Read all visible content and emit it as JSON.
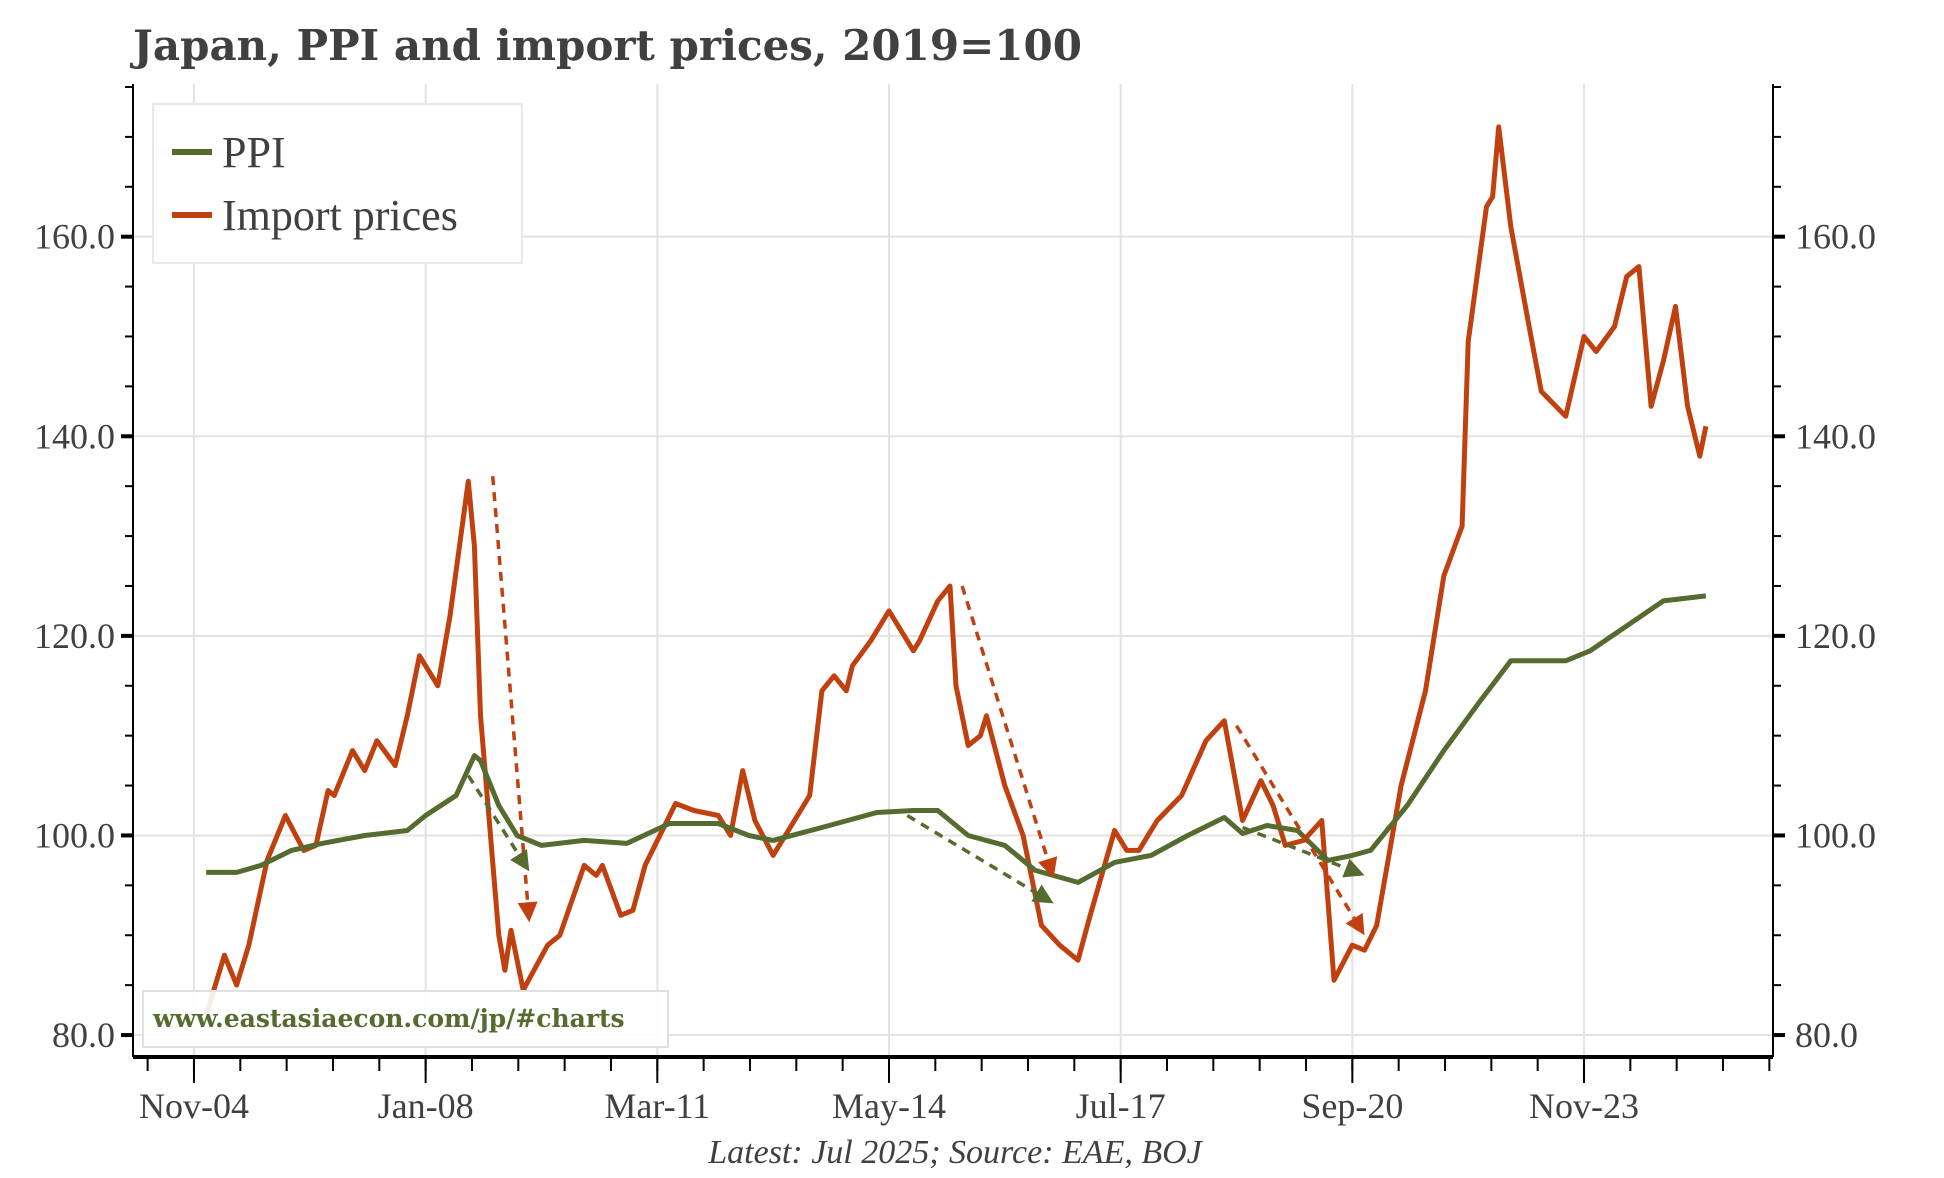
{
  "chart_data": {
    "type": "line",
    "title": "Japan, PPI and import prices, 2019=100",
    "footer": "Latest: Jul 2025; Source: EAE, BOJ",
    "watermark": "www.eastasiaecon.com/jp/#charts",
    "ylim": [
      77.8,
      175.3
    ],
    "xlim": [
      "2004-01",
      "2026-06"
    ],
    "y_ticks": [
      "80.0",
      "100.0",
      "120.0",
      "140.0",
      "160.0"
    ],
    "y_tick_values": [
      80,
      100,
      120,
      140,
      160
    ],
    "x_ticks": [
      "Nov-04",
      "Jan-08",
      "Mar-11",
      "May-14",
      "Jul-17",
      "Sep-20",
      "Nov-23"
    ],
    "x_tick_dates": [
      "2004-11",
      "2008-01",
      "2011-03",
      "2014-05",
      "2017-07",
      "2020-09",
      "2023-11"
    ],
    "grid": true,
    "dual_y_axis": true,
    "legend_placement": "top-left",
    "series": [
      {
        "name": "PPI",
        "color": "#556b2f",
        "points": [
          [
            "2005-01",
            96.3
          ],
          [
            "2005-06",
            96.3
          ],
          [
            "2005-10",
            97
          ],
          [
            "2006-03",
            98.5
          ],
          [
            "2006-08",
            99.2
          ],
          [
            "2007-03",
            100
          ],
          [
            "2007-10",
            100.5
          ],
          [
            "2008-01",
            102
          ],
          [
            "2008-06",
            104
          ],
          [
            "2008-09",
            108
          ],
          [
            "2008-10",
            107.5
          ],
          [
            "2009-01",
            103
          ],
          [
            "2009-04",
            100
          ],
          [
            "2009-08",
            99
          ],
          [
            "2010-03",
            99.5
          ],
          [
            "2010-10",
            99.2
          ],
          [
            "2011-05",
            101.2
          ],
          [
            "2012-01",
            101.2
          ],
          [
            "2012-06",
            100
          ],
          [
            "2012-10",
            99.5
          ],
          [
            "2013-06",
            100.8
          ],
          [
            "2014-03",
            102.3
          ],
          [
            "2014-09",
            102.5
          ],
          [
            "2015-01",
            102.5
          ],
          [
            "2015-06",
            100
          ],
          [
            "2015-12",
            99
          ],
          [
            "2016-05",
            96.5
          ],
          [
            "2016-12",
            95.3
          ],
          [
            "2017-06",
            97.3
          ],
          [
            "2017-12",
            98
          ],
          [
            "2018-06",
            100
          ],
          [
            "2018-12",
            101.8
          ],
          [
            "2019-03",
            100.2
          ],
          [
            "2019-07",
            101
          ],
          [
            "2019-12",
            100.5
          ],
          [
            "2020-05",
            97.5
          ],
          [
            "2020-09",
            98
          ],
          [
            "2020-12",
            98.5
          ],
          [
            "2021-06",
            103
          ],
          [
            "2021-12",
            108.5
          ],
          [
            "2022-06",
            113.5
          ],
          [
            "2022-11",
            117.5
          ],
          [
            "2023-03",
            117.5
          ],
          [
            "2023-08",
            117.5
          ],
          [
            "2023-12",
            118.5
          ],
          [
            "2024-06",
            121
          ],
          [
            "2024-12",
            123.5
          ],
          [
            "2025-07",
            124
          ]
        ]
      },
      {
        "name": "Import prices",
        "color": "#c0410f",
        "points": [
          [
            "2005-01",
            82
          ],
          [
            "2005-04",
            88
          ],
          [
            "2005-06",
            85
          ],
          [
            "2005-08",
            89
          ],
          [
            "2005-11",
            97.5
          ],
          [
            "2006-02",
            102
          ],
          [
            "2006-05",
            98.5
          ],
          [
            "2006-07",
            99
          ],
          [
            "2006-09",
            104.5
          ],
          [
            "2006-10",
            104
          ],
          [
            "2007-01",
            108.5
          ],
          [
            "2007-03",
            106.5
          ],
          [
            "2007-05",
            109.5
          ],
          [
            "2007-08",
            107
          ],
          [
            "2007-10",
            112
          ],
          [
            "2007-12",
            118
          ],
          [
            "2008-03",
            115
          ],
          [
            "2008-05",
            122
          ],
          [
            "2008-08",
            135.5
          ],
          [
            "2008-09",
            129
          ],
          [
            "2008-10",
            112
          ],
          [
            "2009-01",
            90
          ],
          [
            "2009-02",
            86.5
          ],
          [
            "2009-03",
            90.5
          ],
          [
            "2009-05",
            84.5
          ],
          [
            "2009-09",
            89
          ],
          [
            "2009-11",
            90
          ],
          [
            "2010-03",
            97
          ],
          [
            "2010-05",
            96
          ],
          [
            "2010-06",
            97
          ],
          [
            "2010-09",
            92
          ],
          [
            "2010-11",
            92.5
          ],
          [
            "2011-01",
            97
          ],
          [
            "2011-06",
            103.2
          ],
          [
            "2011-09",
            102.5
          ],
          [
            "2012-01",
            102
          ],
          [
            "2012-03",
            100
          ],
          [
            "2012-05",
            106.5
          ],
          [
            "2012-07",
            101.5
          ],
          [
            "2012-10",
            98
          ],
          [
            "2013-01",
            101
          ],
          [
            "2013-04",
            104
          ],
          [
            "2013-06",
            114.5
          ],
          [
            "2013-08",
            116
          ],
          [
            "2013-10",
            114.5
          ],
          [
            "2013-11",
            117
          ],
          [
            "2014-02",
            119.5
          ],
          [
            "2014-05",
            122.5
          ],
          [
            "2014-09",
            118.5
          ],
          [
            "2014-10",
            119.5
          ],
          [
            "2015-01",
            123.5
          ],
          [
            "2015-03",
            125
          ],
          [
            "2015-04",
            115
          ],
          [
            "2015-06",
            109
          ],
          [
            "2015-08",
            110
          ],
          [
            "2015-09",
            112
          ],
          [
            "2015-12",
            105
          ],
          [
            "2016-03",
            100
          ],
          [
            "2016-06",
            91
          ],
          [
            "2016-09",
            89
          ],
          [
            "2016-12",
            87.5
          ],
          [
            "2017-02",
            92
          ],
          [
            "2017-06",
            100.5
          ],
          [
            "2017-08",
            98.5
          ],
          [
            "2017-10",
            98.5
          ],
          [
            "2018-01",
            101.5
          ],
          [
            "2018-05",
            104
          ],
          [
            "2018-09",
            109.5
          ],
          [
            "2018-12",
            111.5
          ],
          [
            "2019-03",
            101.5
          ],
          [
            "2019-06",
            105.5
          ],
          [
            "2019-08",
            103
          ],
          [
            "2019-10",
            99
          ],
          [
            "2020-01",
            99.5
          ],
          [
            "2020-04",
            101.5
          ],
          [
            "2020-06",
            85.5
          ],
          [
            "2020-09",
            89
          ],
          [
            "2020-11",
            88.5
          ],
          [
            "2021-01",
            91
          ],
          [
            "2021-05",
            105
          ],
          [
            "2021-09",
            114.5
          ],
          [
            "2021-12",
            126
          ],
          [
            "2022-03",
            131
          ],
          [
            "2022-04",
            149.5
          ],
          [
            "2022-07",
            163
          ],
          [
            "2022-08",
            164
          ],
          [
            "2022-09",
            171
          ],
          [
            "2022-11",
            161
          ],
          [
            "2023-02",
            151
          ],
          [
            "2023-04",
            144.5
          ],
          [
            "2023-08",
            142
          ],
          [
            "2023-11",
            150
          ],
          [
            "2024-01",
            148.5
          ],
          [
            "2024-04",
            151
          ],
          [
            "2024-06",
            156
          ],
          [
            "2024-08",
            157
          ],
          [
            "2024-10",
            143
          ],
          [
            "2024-12",
            147.5
          ],
          [
            "2025-02",
            153
          ],
          [
            "2025-04",
            143
          ],
          [
            "2025-06",
            138
          ],
          [
            "2025-07",
            141
          ]
        ]
      }
    ],
    "annotations": [
      {
        "type": "dashed-arrow",
        "series": "Import prices",
        "color": "#c0410f",
        "from": [
          "2008-12",
          136
        ],
        "to": [
          "2009-06",
          91.3
        ]
      },
      {
        "type": "dashed-arrow",
        "series": "PPI",
        "color": "#556b2f",
        "from": [
          "2008-08",
          106
        ],
        "to": [
          "2009-06",
          96.4
        ]
      },
      {
        "type": "dashed-arrow",
        "series": "Import prices",
        "color": "#c0410f",
        "from": [
          "2015-05",
          125
        ],
        "to": [
          "2016-08",
          95.7
        ]
      },
      {
        "type": "dashed-arrow",
        "series": "PPI",
        "color": "#556b2f",
        "from": [
          "2014-08",
          102
        ],
        "to": [
          "2016-08",
          93.2
        ]
      },
      {
        "type": "dashed-arrow",
        "series": "Import prices",
        "color": "#c0410f",
        "from": [
          "2019-02",
          111
        ],
        "to": [
          "2020-11",
          90
        ]
      },
      {
        "type": "dashed-arrow",
        "series": "PPI",
        "color": "#556b2f",
        "from": [
          "2019-03",
          100.8
        ],
        "to": [
          "2020-11",
          96
        ]
      }
    ]
  }
}
